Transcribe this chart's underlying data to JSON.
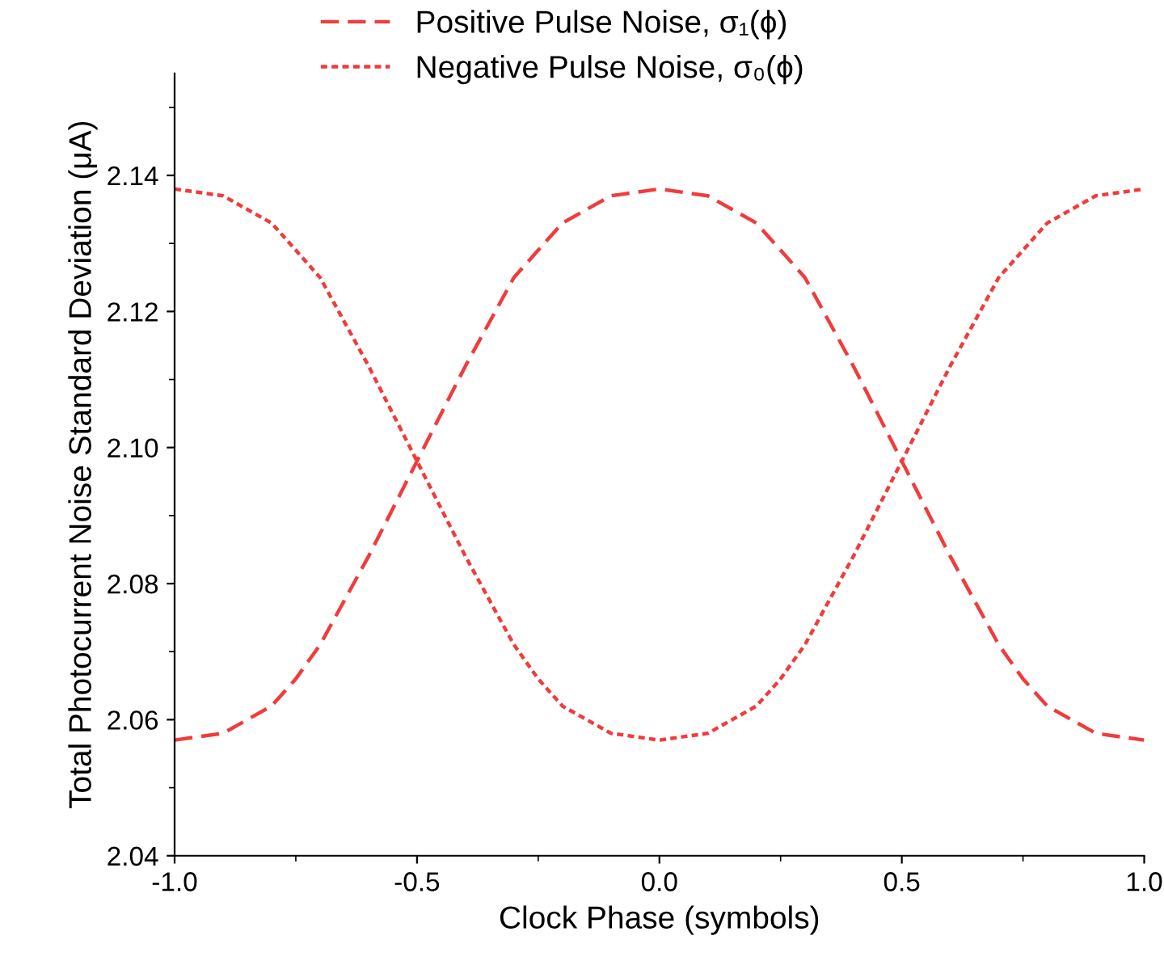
{
  "chart_data": {
    "type": "line",
    "xlabel": "Clock Phase (symbols)",
    "ylabel": "Total Photocurrent Noise Standard Deviation (μA)",
    "x": [
      -1.0,
      -0.9,
      -0.8,
      -0.75,
      -0.7,
      -0.6,
      -0.5,
      -0.4,
      -0.3,
      -0.25,
      -0.2,
      -0.1,
      0.0,
      0.1,
      0.2,
      0.25,
      0.3,
      0.4,
      0.5,
      0.6,
      0.7,
      0.75,
      0.8,
      0.9,
      1.0
    ],
    "series": [
      {
        "name": "Positive Pulse Noise, σ₁(ϕ)",
        "color": "#f03c3c",
        "line_style": "dashed",
        "values": [
          2.057,
          2.058,
          2.062,
          2.066,
          2.071,
          2.084,
          2.098,
          2.112,
          2.125,
          2.129,
          2.133,
          2.137,
          2.138,
          2.137,
          2.133,
          2.129,
          2.125,
          2.112,
          2.098,
          2.084,
          2.071,
          2.066,
          2.062,
          2.058,
          2.057
        ]
      },
      {
        "name": "Negative Pulse Noise, σ₀(ϕ)",
        "color": "#f03c3c",
        "line_style": "dotted",
        "values": [
          2.138,
          2.137,
          2.133,
          2.129,
          2.125,
          2.112,
          2.098,
          2.084,
          2.071,
          2.066,
          2.062,
          2.058,
          2.057,
          2.058,
          2.062,
          2.066,
          2.071,
          2.084,
          2.098,
          2.112,
          2.125,
          2.129,
          2.133,
          2.137,
          2.138
        ]
      }
    ],
    "xlim": [
      -1.0,
      1.0
    ],
    "ylim": [
      2.04,
      2.155
    ],
    "xticks": [
      {
        "value": -1.0,
        "label": "-1.0"
      },
      {
        "value": -0.5,
        "label": "-0.5"
      },
      {
        "value": 0.0,
        "label": "0.0"
      },
      {
        "value": 0.5,
        "label": "0.5"
      },
      {
        "value": 1.0,
        "label": "1.0"
      }
    ],
    "yticks": [
      2.04,
      2.06,
      2.08,
      {
        "value": 2.1,
        "label": "2.10"
      },
      2.12,
      2.14
    ],
    "grid": false,
    "legend": "top",
    "marker": "none"
  }
}
